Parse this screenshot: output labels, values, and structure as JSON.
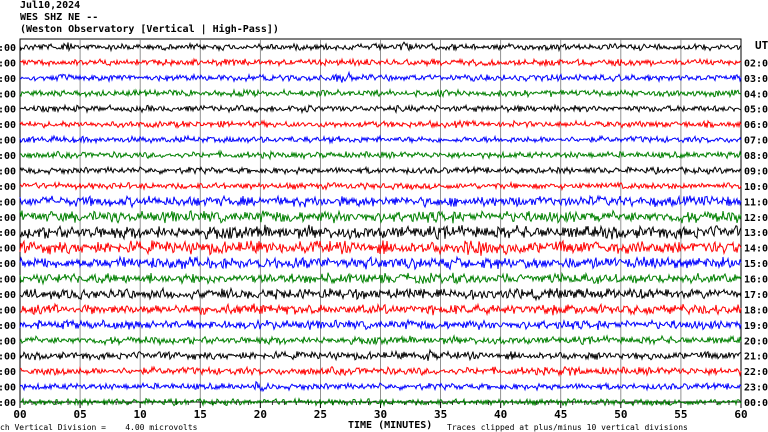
{
  "header": {
    "date": "Jul10,2024",
    "station": "WES SHZ NE --",
    "source": "(Weston Observatory [Vertical | High-Pass])"
  },
  "footer": {
    "scale_note": "ch Vertical Division =    4.00 microvolts",
    "clip_note": "Traces clipped at plus/minus 10 vertical divisions"
  },
  "chart_data": {
    "type": "line",
    "title": "",
    "xlabel": "TIME (MINUTES)",
    "ylabel": "",
    "xlim": [
      0,
      60
    ],
    "x_ticks": [
      "00",
      "05",
      "10",
      "15",
      "20",
      "25",
      "30",
      "35",
      "40",
      "45",
      "50",
      "55",
      "60"
    ],
    "grid": true,
    "right_axis_title": "UT",
    "left_labels": [
      ":00",
      ":00",
      ":00",
      ":00",
      ":00",
      ":00",
      ":00",
      ":00",
      ":00",
      ":00",
      ":00",
      ":00",
      ":00",
      ":00",
      ":00",
      ":00",
      ":00",
      ":00",
      ":00",
      ":00",
      ":00",
      ":00",
      ":00",
      ":00"
    ],
    "right_labels": [
      "",
      "02:0",
      "03:0",
      "04:0",
      "05:0",
      "06:0",
      "07:0",
      "08:0",
      "09:0",
      "10:0",
      "11:0",
      "12:0",
      "13:0",
      "14:0",
      "15:0",
      "16:0",
      "17:0",
      "18:0",
      "19:0",
      "20:0",
      "21:0",
      "22:0",
      "23:0",
      "00:0"
    ],
    "trace_colors": [
      "#000000",
      "#ff0000",
      "#0000ff",
      "#008000"
    ],
    "trace_amplitude": [
      2.5,
      2.5,
      2.5,
      2.5,
      2.5,
      2.5,
      2.5,
      2.5,
      2.5,
      2.5,
      4,
      4.5,
      5,
      5,
      4.5,
      4,
      4,
      4,
      3.5,
      3,
      3,
      3,
      2.5,
      2.5
    ],
    "bursts": [
      {
        "trace": 0,
        "minute": 4,
        "amp": 6
      },
      {
        "trace": 0,
        "minute": 32,
        "amp": 7
      },
      {
        "trace": 2,
        "minute": 27,
        "amp": 9
      },
      {
        "trace": 3,
        "minute": 58,
        "amp": 6
      },
      {
        "trace": 4,
        "minute": 24,
        "amp": 6
      },
      {
        "trace": 11,
        "minute": 8,
        "amp": 7
      },
      {
        "trace": 13,
        "minute": 38,
        "amp": 18
      },
      {
        "trace": 16,
        "minute": 38,
        "amp": 8
      },
      {
        "trace": 20,
        "minute": 34,
        "amp": 7
      },
      {
        "trace": 21,
        "minute": 3,
        "amp": 6
      },
      {
        "trace": 21,
        "minute": 46,
        "amp": 7
      },
      {
        "trace": 22,
        "minute": 20,
        "amp": 7
      }
    ]
  }
}
